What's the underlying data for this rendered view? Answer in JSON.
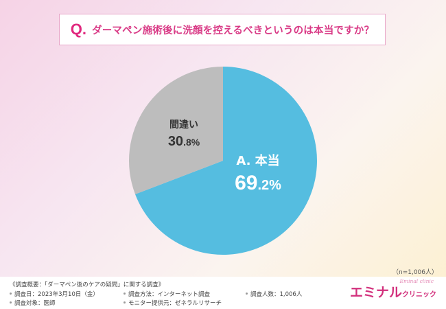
{
  "header": {
    "q_mark": "Q.",
    "question": "ダーマペン施術後に洗顔を控えるべきというのは本当ですか？"
  },
  "chart_data": {
    "type": "pie",
    "slices": [
      {
        "name": "A. 本当",
        "value": 69.2,
        "color": "#55bde0",
        "label_main": "A. 本当",
        "label_num": "69",
        "label_dec": ".2%"
      },
      {
        "name": "間違い",
        "value": 30.8,
        "color": "#bdbdbd",
        "label_main": "間違い",
        "label_num": "30",
        "label_dec": ".8%"
      }
    ]
  },
  "sample_size": "（n=1,006人）",
  "footer": {
    "survey_title": "《調査概要：「ダーマペン後のケアの疑問」に関する調査》",
    "date": "調査日：2023年3月10日（金）",
    "method": "調査方法：インターネット調査",
    "count": "調査人数：1,006人",
    "target": "調査対象：医師",
    "provider": "モニター提供元：ゼネラルリサーチ"
  },
  "logo": {
    "main": "エミナル",
    "sub": "クリニック",
    "script": "Eminal clinic"
  }
}
